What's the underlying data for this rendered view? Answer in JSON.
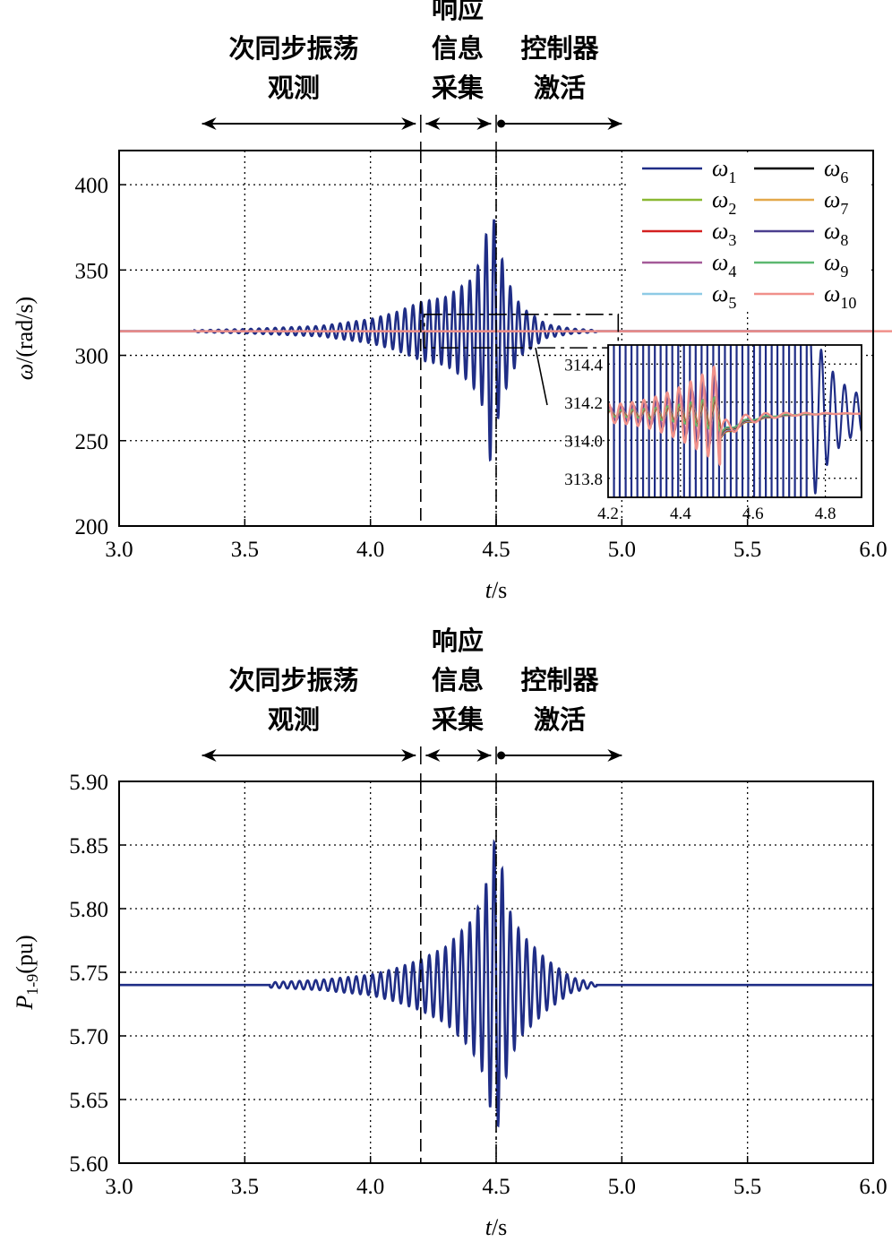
{
  "chart_data": [
    {
      "type": "line",
      "id": "omega-chart",
      "title": "",
      "xlabel": "t/s",
      "xlabel_italic_part": "t",
      "xlabel_rest": "/s",
      "ylabel": "ω/(rad/s)",
      "ylabel_italic_part": "ω",
      "ylabel_rest": "/(rad/s)",
      "xlim": [
        3.0,
        6.0
      ],
      "ylim": [
        200,
        420
      ],
      "xticks": [
        "3.0",
        "3.5",
        "4.0",
        "4.5",
        "5.0",
        "5.5",
        "6.0"
      ],
      "yticks": [
        "200",
        "250",
        "300",
        "350",
        "400"
      ],
      "grid": "dotted",
      "phase_markers": [
        4.2,
        4.5
      ],
      "phase_annotations": [
        {
          "lines": [
            "次同步振荡",
            "观测"
          ],
          "from": 3.33,
          "to": 4.18,
          "arrow": "both"
        },
        {
          "lines": [
            "响应",
            "信息",
            "采集"
          ],
          "from": 4.22,
          "to": 4.48,
          "arrow": "both"
        },
        {
          "lines": [
            "控制器",
            "激活"
          ],
          "from": 4.52,
          "to": 5.0,
          "arrow": "right",
          "start_marker": "dot"
        }
      ],
      "legend_position": "upper-right",
      "series": [
        {
          "name": "ω1",
          "base": "ω",
          "sub": "1",
          "color": "#1f2d86",
          "baseline": 314.16,
          "description": "SSO growing 4.0–4.5 s, peak ≈397 at 4.48 s, min ≈223 at 4.49 s, decays after 4.5 s to steady ≈314 by 4.9 s"
        },
        {
          "name": "ω2",
          "base": "ω",
          "sub": "2",
          "color": "#8ab833",
          "baseline": 314.16
        },
        {
          "name": "ω3",
          "base": "ω",
          "sub": "3",
          "color": "#d42020",
          "baseline": 314.16
        },
        {
          "name": "ω4",
          "base": "ω",
          "sub": "4",
          "color": "#a45a98",
          "baseline": 314.16
        },
        {
          "name": "ω5",
          "base": "ω",
          "sub": "5",
          "color": "#8ecbe6",
          "baseline": 314.16
        },
        {
          "name": "ω6",
          "base": "ω",
          "sub": "6",
          "color": "#000000",
          "baseline": 314.16
        },
        {
          "name": "ω7",
          "base": "ω",
          "sub": "7",
          "color": "#e3a84a",
          "baseline": 314.16
        },
        {
          "name": "ω8",
          "base": "ω",
          "sub": "8",
          "color": "#4b3f8f",
          "baseline": 314.16
        },
        {
          "name": "ω9",
          "base": "ω",
          "sub": "9",
          "color": "#5cb870",
          "baseline": 314.16
        },
        {
          "name": "ω10",
          "base": "ω",
          "sub": "10",
          "color": "#f0908a",
          "baseline": 314.16
        }
      ],
      "envelope_points": {
        "t": [
          3.3,
          3.5,
          3.8,
          4.0,
          4.1,
          4.2,
          4.3,
          4.4,
          4.45,
          4.48,
          4.5,
          4.55,
          4.6,
          4.7,
          4.8,
          4.9
        ],
        "omega1_amplitude": [
          0.5,
          1.2,
          3,
          7,
          11,
          17,
          20,
          30,
          45,
          80,
          55,
          28,
          14,
          4,
          1.5,
          0.5
        ]
      },
      "zoom_box": {
        "t_range": [
          4.2,
          4.95
        ],
        "y_range": [
          306,
          324
        ]
      },
      "inset": {
        "xlim": [
          4.2,
          4.9
        ],
        "ylim": [
          313.7,
          314.5
        ],
        "xticks": [
          "4.2",
          "4.4",
          "4.6",
          "4.8"
        ],
        "yticks": [
          "313.8",
          "314.0",
          "314.2",
          "314.4"
        ],
        "steady_value": 314.14,
        "notes": "ω2–ω10 oscillate ±0.05–0.2 around 314.14 before 4.5 s, dip to ≈314.02 at 4.52 s, settle by ≈4.7 s; ω10 largest swing (313.75–314.38)"
      }
    },
    {
      "type": "line",
      "id": "power-chart",
      "title": "",
      "xlabel": "t/s",
      "xlabel_italic_part": "t",
      "xlabel_rest": "/s",
      "ylabel": "P1-9(pu)",
      "ylabel_italic_part": "P",
      "ylabel_sub": "1-9",
      "ylabel_rest": "(pu)",
      "xlim": [
        3.0,
        6.0
      ],
      "ylim": [
        5.6,
        5.9
      ],
      "xticks": [
        "3.0",
        "3.5",
        "4.0",
        "4.5",
        "5.0",
        "5.5",
        "6.0"
      ],
      "yticks": [
        "5.60",
        "5.65",
        "5.70",
        "5.75",
        "5.80",
        "5.85",
        "5.90"
      ],
      "grid": "dotted",
      "phase_markers": [
        4.2,
        4.5
      ],
      "phase_annotations": [
        {
          "lines": [
            "次同步振荡",
            "观测"
          ],
          "from": 3.33,
          "to": 4.18,
          "arrow": "both"
        },
        {
          "lines": [
            "响应",
            "信息",
            "采集"
          ],
          "from": 4.22,
          "to": 4.48,
          "arrow": "both"
        },
        {
          "lines": [
            "控制器",
            "激活"
          ],
          "from": 4.52,
          "to": 5.0,
          "arrow": "right",
          "start_marker": "dot"
        }
      ],
      "series": [
        {
          "name": "P1-9",
          "color": "#1f2d86",
          "baseline": 5.74,
          "description": "Baseline 5.74; oscillation grows from ≈3.8 s, peak ≈5.87 at 4.50 s, min ≈5.63 at 4.49 s, decays to baseline by ≈4.9 s"
        }
      ],
      "envelope_points": {
        "t": [
          3.6,
          3.8,
          4.0,
          4.1,
          4.2,
          4.3,
          4.4,
          4.45,
          4.5,
          4.55,
          4.6,
          4.7,
          4.8,
          4.9
        ],
        "amplitude": [
          0.002,
          0.004,
          0.008,
          0.013,
          0.02,
          0.03,
          0.05,
          0.07,
          0.12,
          0.06,
          0.04,
          0.02,
          0.006,
          0.001
        ]
      }
    }
  ]
}
